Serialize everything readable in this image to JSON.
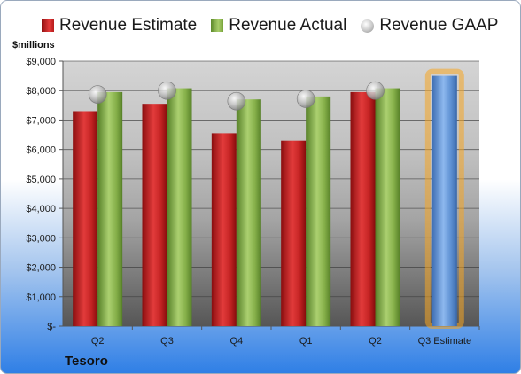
{
  "y_unit_label": "$millions",
  "company": "Tesoro",
  "legend": {
    "estimate": "Revenue Estimate",
    "actual": "Revenue Actual",
    "gaap": "Revenue GAAP"
  },
  "colors": {
    "estimate": "#c0201f",
    "actual": "#8cb24f",
    "gaap": "#b5b5b5",
    "estimate_bar": "#5b8fd0",
    "highlight_glow": "#f5a623"
  },
  "chart_data": {
    "type": "bar",
    "categories": [
      "Q2",
      "Q3",
      "Q4",
      "Q1",
      "Q2",
      "Q3 Estimate"
    ],
    "series": [
      {
        "name": "Revenue Estimate",
        "values": [
          7300,
          7550,
          6550,
          6300,
          7950,
          null
        ]
      },
      {
        "name": "Revenue Actual",
        "values": [
          7950,
          8080,
          7700,
          7800,
          8080,
          null
        ]
      },
      {
        "name": "Revenue GAAP",
        "kind": "marker",
        "values": [
          7870,
          8000,
          7640,
          7720,
          8000,
          null
        ]
      },
      {
        "name": "Q3 Estimate",
        "values": [
          null,
          null,
          null,
          null,
          null,
          8500
        ]
      }
    ],
    "ylim": [
      0,
      9000
    ],
    "yticks": [
      0,
      1000,
      2000,
      3000,
      4000,
      5000,
      6000,
      7000,
      8000,
      9000
    ],
    "ytick_labels": [
      "$-",
      "$1,000",
      "$2,000",
      "$3,000",
      "$4,000",
      "$5,000",
      "$6,000",
      "$7,000",
      "$8,000",
      "$9,000"
    ],
    "grid": true,
    "legend_position": "top"
  }
}
